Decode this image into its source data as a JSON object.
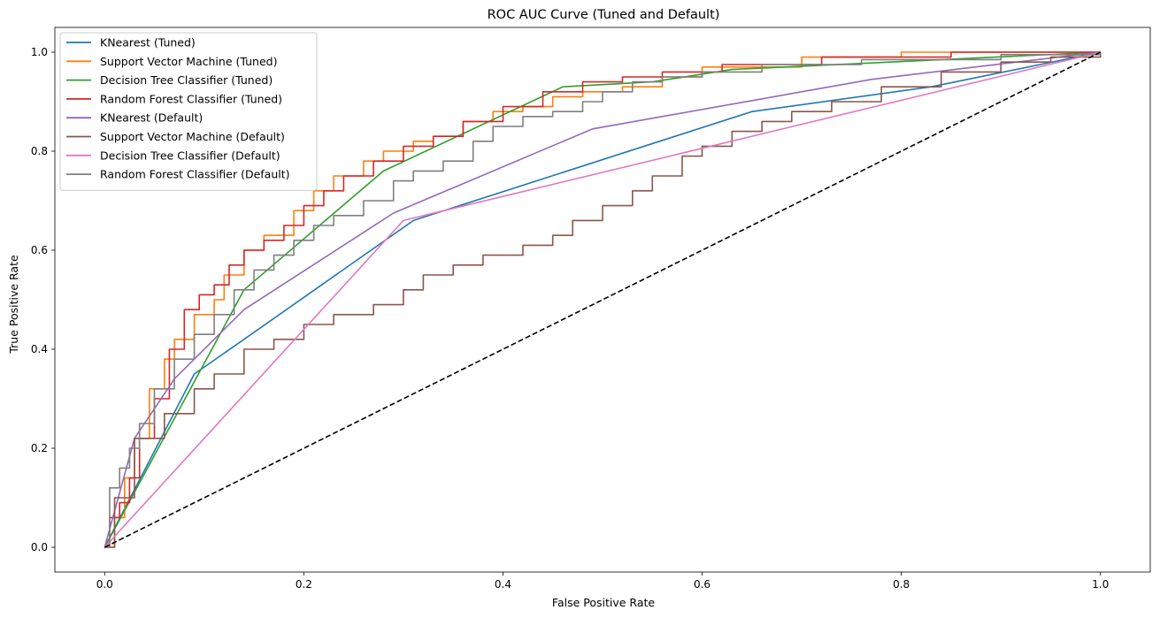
{
  "chart_data": {
    "type": "line",
    "title": "ROC AUC Curve (Tuned and Default)",
    "xlabel": "False Positive Rate",
    "ylabel": "True Positive Rate",
    "xlim": [
      -0.05,
      1.05
    ],
    "ylim": [
      -0.05,
      1.05
    ],
    "xticks": [
      "0.0",
      "0.2",
      "0.4",
      "0.6",
      "0.8",
      "1.0"
    ],
    "yticks": [
      "0.0",
      "0.2",
      "0.4",
      "0.6",
      "0.8",
      "1.0"
    ],
    "grid": false,
    "legend_position": "upper-left",
    "series": [
      {
        "name": "KNearest (Tuned)",
        "color": "#1f77b4",
        "style": "solid",
        "points": [
          [
            0,
            0
          ],
          [
            0.09,
            0.35
          ],
          [
            0.14,
            0.42
          ],
          [
            0.31,
            0.66
          ],
          [
            0.65,
            0.88
          ],
          [
            0.83,
            0.93
          ],
          [
            1,
            1
          ]
        ]
      },
      {
        "name": "Support Vector Machine (Tuned)",
        "color": "#ff7f0e",
        "style": "step",
        "points": [
          [
            0,
            0
          ],
          [
            0.01,
            0.06
          ],
          [
            0.02,
            0.14
          ],
          [
            0.03,
            0.22
          ],
          [
            0.045,
            0.32
          ],
          [
            0.06,
            0.38
          ],
          [
            0.07,
            0.42
          ],
          [
            0.09,
            0.47
          ],
          [
            0.11,
            0.5
          ],
          [
            0.12,
            0.55
          ],
          [
            0.14,
            0.6
          ],
          [
            0.16,
            0.63
          ],
          [
            0.19,
            0.68
          ],
          [
            0.21,
            0.72
          ],
          [
            0.23,
            0.75
          ],
          [
            0.26,
            0.78
          ],
          [
            0.28,
            0.8
          ],
          [
            0.31,
            0.82
          ],
          [
            0.33,
            0.83
          ],
          [
            0.36,
            0.86
          ],
          [
            0.39,
            0.88
          ],
          [
            0.42,
            0.89
          ],
          [
            0.45,
            0.91
          ],
          [
            0.48,
            0.92
          ],
          [
            0.52,
            0.93
          ],
          [
            0.56,
            0.95
          ],
          [
            0.6,
            0.97
          ],
          [
            0.7,
            0.99
          ],
          [
            0.8,
            1.0
          ],
          [
            1,
            1
          ]
        ]
      },
      {
        "name": "Decision Tree Classifier (Tuned)",
        "color": "#2ca02c",
        "style": "solid",
        "points": [
          [
            0,
            0
          ],
          [
            0.14,
            0.52
          ],
          [
            0.28,
            0.76
          ],
          [
            0.46,
            0.93
          ],
          [
            0.55,
            0.94
          ],
          [
            0.63,
            0.965
          ],
          [
            1,
            1
          ]
        ]
      },
      {
        "name": "Random Forest Classifier (Tuned)",
        "color": "#d62728",
        "style": "step",
        "points": [
          [
            0,
            0
          ],
          [
            0.005,
            0.06
          ],
          [
            0.015,
            0.09
          ],
          [
            0.025,
            0.14
          ],
          [
            0.035,
            0.22
          ],
          [
            0.05,
            0.3
          ],
          [
            0.065,
            0.4
          ],
          [
            0.08,
            0.48
          ],
          [
            0.095,
            0.51
          ],
          [
            0.11,
            0.53
          ],
          [
            0.125,
            0.57
          ],
          [
            0.14,
            0.6
          ],
          [
            0.16,
            0.62
          ],
          [
            0.18,
            0.65
          ],
          [
            0.2,
            0.69
          ],
          [
            0.22,
            0.72
          ],
          [
            0.24,
            0.75
          ],
          [
            0.27,
            0.78
          ],
          [
            0.3,
            0.81
          ],
          [
            0.33,
            0.83
          ],
          [
            0.36,
            0.86
          ],
          [
            0.4,
            0.89
          ],
          [
            0.44,
            0.92
          ],
          [
            0.48,
            0.94
          ],
          [
            0.52,
            0.95
          ],
          [
            0.56,
            0.96
          ],
          [
            0.62,
            0.975
          ],
          [
            0.72,
            0.99
          ],
          [
            0.85,
            1.0
          ],
          [
            1,
            1
          ]
        ]
      },
      {
        "name": "KNearest (Default)",
        "color": "#9467bd",
        "style": "solid",
        "points": [
          [
            0,
            0
          ],
          [
            0.03,
            0.22
          ],
          [
            0.07,
            0.34
          ],
          [
            0.14,
            0.48
          ],
          [
            0.29,
            0.675
          ],
          [
            0.49,
            0.845
          ],
          [
            0.77,
            0.945
          ],
          [
            1,
            1
          ]
        ]
      },
      {
        "name": "Support Vector Machine (Default)",
        "color": "#8c564b",
        "style": "step",
        "points": [
          [
            0,
            0
          ],
          [
            0.01,
            0.1
          ],
          [
            0.03,
            0.22
          ],
          [
            0.06,
            0.27
          ],
          [
            0.09,
            0.32
          ],
          [
            0.11,
            0.35
          ],
          [
            0.14,
            0.4
          ],
          [
            0.17,
            0.42
          ],
          [
            0.2,
            0.45
          ],
          [
            0.23,
            0.47
          ],
          [
            0.27,
            0.49
          ],
          [
            0.3,
            0.52
          ],
          [
            0.32,
            0.55
          ],
          [
            0.35,
            0.57
          ],
          [
            0.38,
            0.59
          ],
          [
            0.42,
            0.61
          ],
          [
            0.45,
            0.63
          ],
          [
            0.47,
            0.66
          ],
          [
            0.5,
            0.69
          ],
          [
            0.53,
            0.72
          ],
          [
            0.55,
            0.75
          ],
          [
            0.58,
            0.79
          ],
          [
            0.6,
            0.81
          ],
          [
            0.63,
            0.84
          ],
          [
            0.66,
            0.86
          ],
          [
            0.69,
            0.88
          ],
          [
            0.73,
            0.9
          ],
          [
            0.78,
            0.93
          ],
          [
            0.84,
            0.96
          ],
          [
            0.9,
            0.98
          ],
          [
            0.95,
            0.99
          ],
          [
            1,
            1
          ]
        ]
      },
      {
        "name": "Decision Tree Classifier (Default)",
        "color": "#e377c2",
        "style": "solid",
        "points": [
          [
            0,
            0
          ],
          [
            0.3,
            0.66
          ],
          [
            0.31,
            0.665
          ],
          [
            1,
            1
          ]
        ]
      },
      {
        "name": "Random Forest Classifier (Default)",
        "color": "#7f7f7f",
        "style": "step",
        "points": [
          [
            0,
            0
          ],
          [
            0.005,
            0.12
          ],
          [
            0.015,
            0.16
          ],
          [
            0.025,
            0.2
          ],
          [
            0.035,
            0.25
          ],
          [
            0.05,
            0.32
          ],
          [
            0.07,
            0.38
          ],
          [
            0.09,
            0.43
          ],
          [
            0.11,
            0.47
          ],
          [
            0.13,
            0.52
          ],
          [
            0.15,
            0.56
          ],
          [
            0.17,
            0.59
          ],
          [
            0.19,
            0.62
          ],
          [
            0.21,
            0.65
          ],
          [
            0.23,
            0.67
          ],
          [
            0.26,
            0.7
          ],
          [
            0.29,
            0.74
          ],
          [
            0.31,
            0.76
          ],
          [
            0.34,
            0.78
          ],
          [
            0.37,
            0.82
          ],
          [
            0.39,
            0.85
          ],
          [
            0.42,
            0.87
          ],
          [
            0.45,
            0.88
          ],
          [
            0.48,
            0.9
          ],
          [
            0.5,
            0.92
          ],
          [
            0.53,
            0.94
          ],
          [
            0.56,
            0.95
          ],
          [
            0.6,
            0.96
          ],
          [
            0.66,
            0.975
          ],
          [
            0.76,
            0.985
          ],
          [
            0.9,
            0.995
          ],
          [
            1,
            1
          ]
        ]
      }
    ],
    "reference_line": {
      "color": "#000000",
      "style": "dashed",
      "points": [
        [
          0,
          0
        ],
        [
          1,
          1
        ]
      ]
    }
  }
}
